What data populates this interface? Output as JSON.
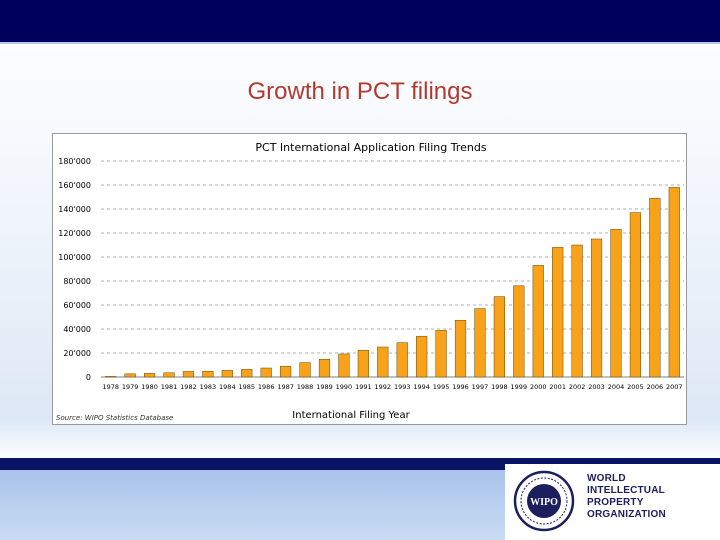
{
  "slide": {
    "title": "Growth in PCT filings",
    "org_lines": [
      "WORLD",
      "INTELLECTUAL",
      "PROPERTY",
      "ORGANIZATION"
    ],
    "seal_text": "WIPO"
  },
  "colors": {
    "bar": "#f8a21a",
    "bar_edge": "#6a4708",
    "header_band": "#00005c",
    "title": "#b03a2e"
  },
  "chart_data": {
    "type": "bar",
    "title": "PCT International Application Filing Trends",
    "xlabel": "International Filing Year",
    "ylabel": "",
    "source": "Source: WIPO Statistics Database",
    "ylim": [
      0,
      180000
    ],
    "yticks": [
      "0",
      "20'000",
      "40'000",
      "60'000",
      "80'000",
      "100'000",
      "120'000",
      "140'000",
      "160'000",
      "180'000"
    ],
    "grid": true,
    "categories": [
      "1978",
      "1979",
      "1980",
      "1981",
      "1982",
      "1983",
      "1984",
      "1985",
      "1986",
      "1987",
      "1988",
      "1989",
      "1990",
      "1991",
      "1992",
      "1993",
      "1994",
      "1995",
      "1996",
      "1997",
      "1998",
      "1999",
      "2000",
      "2001",
      "2002",
      "2003",
      "2004",
      "2005",
      "2006",
      "2007"
    ],
    "values": [
      459,
      2625,
      3000,
      3500,
      4600,
      4800,
      5500,
      6500,
      7500,
      9000,
      12000,
      14800,
      19200,
      22200,
      25000,
      28600,
      34000,
      38900,
      47300,
      57000,
      67000,
      76000,
      93000,
      108000,
      110000,
      115000,
      123000,
      137000,
      149000,
      158000
    ]
  }
}
